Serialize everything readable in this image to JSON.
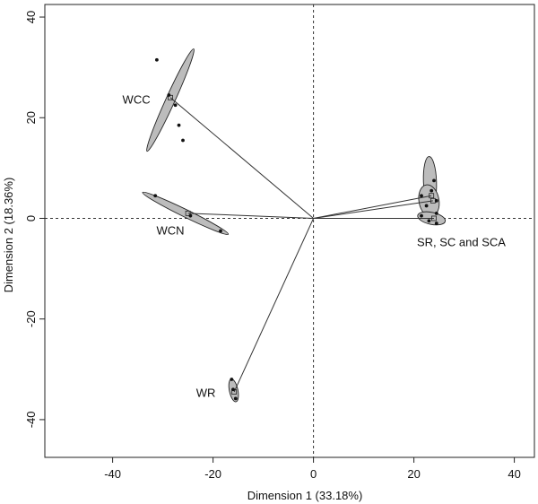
{
  "chart_data": {
    "type": "scatter",
    "xlabel": "Dimension 1 (33.18%)",
    "ylabel": "Dimension 2 (18.36%)",
    "xlim": [
      -53.5,
      44
    ],
    "ylim": [
      -47.5,
      42.5
    ],
    "xticks": [
      -40,
      -20,
      0,
      20,
      40
    ],
    "yticks": [
      -40,
      -20,
      0,
      20,
      40
    ],
    "reference_lines": {
      "x": 0,
      "y": 0,
      "style": "dashed"
    },
    "grid": false,
    "colors": {
      "ellipse_fill": "#bcbcbc",
      "ellipse_stroke": "#222222",
      "point": "#111111",
      "line": "#333333"
    },
    "groups": [
      {
        "label": "WCC",
        "centroid": [
          -28.5,
          24
        ],
        "label_pos": [
          -32.5,
          23.5
        ],
        "ellipses": [
          {
            "center": [
              -28.5,
              23.5
            ],
            "rx": 11.2,
            "ry": 0.9,
            "angle": 65.5
          }
        ],
        "points": [
          [
            -31.2,
            31.5
          ],
          [
            -28.8,
            24.5
          ],
          [
            -27.5,
            22.5
          ],
          [
            -26.8,
            18.5
          ],
          [
            -26.0,
            15.5
          ]
        ]
      },
      {
        "label": "WCN",
        "centroid": [
          -25,
          1
        ],
        "label_pos": [
          -28.5,
          -2.5
        ],
        "ellipses": [
          {
            "center": [
              -25.5,
              1
            ],
            "rx": 9.5,
            "ry": 0.75,
            "angle": -26
          }
        ],
        "points": [
          [
            -31.5,
            4.5
          ],
          [
            -24.5,
            0.5
          ],
          [
            -18.5,
            -2.5
          ]
        ]
      },
      {
        "label": "WR",
        "centroid": [
          -15.8,
          -34.5
        ],
        "label_pos": [
          -19.5,
          -34.8
        ],
        "ellipses": [
          {
            "center": [
              -15.9,
              -34.2
            ],
            "rx": 2.3,
            "ry": 0.85,
            "angle": -78
          }
        ],
        "points": [
          [
            -16.3,
            -32
          ],
          [
            -16.0,
            -34
          ],
          [
            -15.5,
            -35.8
          ]
        ]
      },
      {
        "label": "SR, SC and SCA",
        "centroid": [
          23.5,
          3
        ],
        "label_pos": [
          20.6,
          -4.8
        ],
        "centroids": [
          [
            23.5,
            4.5
          ],
          [
            23.8,
            3.5
          ],
          [
            24.0,
            0
          ]
        ],
        "ellipses": [
          {
            "center": [
              23.2,
              7.3
            ],
            "rx": 5.0,
            "ry": 1.3,
            "angle": -88
          },
          {
            "center": [
              23.0,
              3.5
            ],
            "rx": 3.2,
            "ry": 2.0,
            "angle": -80
          },
          {
            "center": [
              23.5,
              0
            ],
            "rx": 2.8,
            "ry": 1.2,
            "angle": -12
          }
        ],
        "points": [
          [
            24.0,
            7.5
          ],
          [
            23.5,
            5.5
          ],
          [
            21.5,
            4.5
          ],
          [
            24.5,
            3.5
          ],
          [
            22.5,
            2.5
          ],
          [
            24.5,
            1.0
          ],
          [
            21.5,
            0.5
          ],
          [
            23.0,
            -0.5
          ],
          [
            24.5,
            -1.0
          ]
        ]
      }
    ]
  }
}
